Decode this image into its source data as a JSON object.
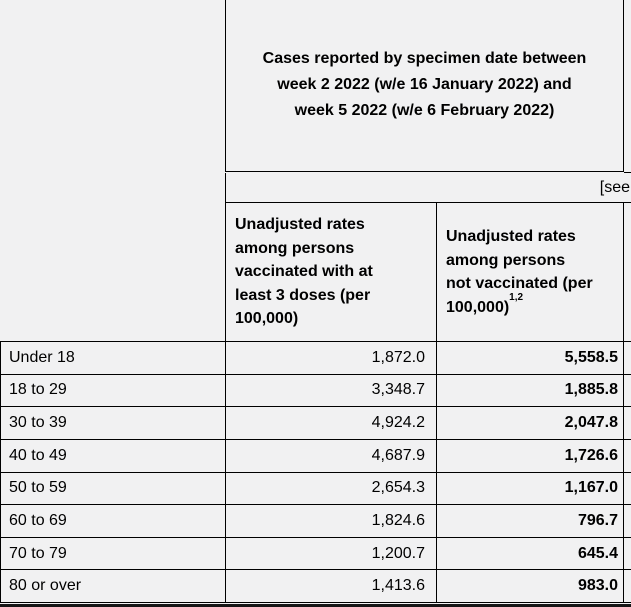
{
  "page": {
    "background_color": "#f1f1f2",
    "border_color": "#000000"
  },
  "table": {
    "spanning_header": {
      "lines": [
        "Cases reported by specimen date between",
        "week 2 2022 (w/e 16 January 2022) and",
        "week 5 2022 (w/e 6 February 2022)"
      ]
    },
    "note_row": {
      "visible_text": "[see"
    },
    "columns": {
      "vaccinated": {
        "lines": [
          "Unadjusted rates",
          "among persons",
          "vaccinated with at",
          "least 3 doses (per",
          "100,000)"
        ]
      },
      "unvaccinated": {
        "lines": [
          "Unadjusted rates",
          "among persons",
          "not vaccinated (per"
        ],
        "last_line": "100,000)",
        "superscript": "1,2"
      }
    },
    "rows": [
      {
        "label": "Under 18",
        "vaccinated": "1,872.0",
        "unvaccinated": "5,558.5"
      },
      {
        "label": "18 to 29",
        "vaccinated": "3,348.7",
        "unvaccinated": "1,885.8"
      },
      {
        "label": "30 to 39",
        "vaccinated": "4,924.2",
        "unvaccinated": "2,047.8"
      },
      {
        "label": "40 to 49",
        "vaccinated": "4,687.9",
        "unvaccinated": "1,726.6"
      },
      {
        "label": "50 to 59",
        "vaccinated": "2,654.3",
        "unvaccinated": "1,167.0"
      },
      {
        "label": "60 to 69",
        "vaccinated": "1,824.6",
        "unvaccinated": "796.7"
      },
      {
        "label": "70 to 79",
        "vaccinated": "1,200.7",
        "unvaccinated": "645.4"
      },
      {
        "label": "80 or over",
        "vaccinated": "1,413.6",
        "unvaccinated": "983.0"
      }
    ]
  }
}
